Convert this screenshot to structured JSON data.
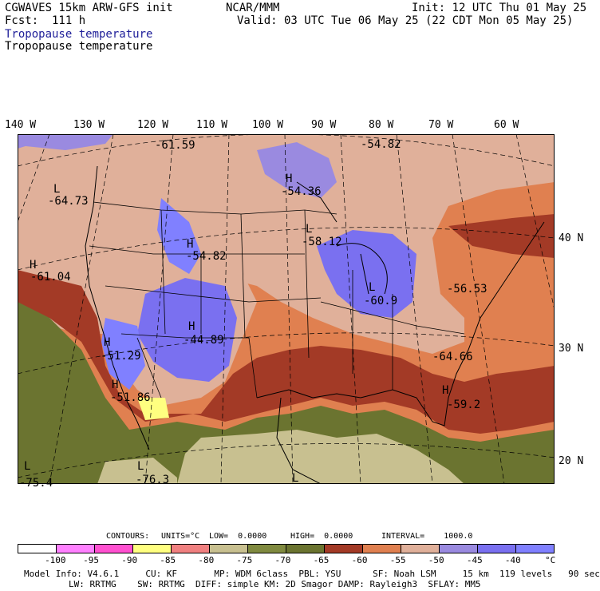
{
  "header": {
    "model": "CGWAVES 15km ARW-GFS init",
    "fcst": "Fcst:  111 h",
    "org": "NCAR/MMM",
    "init": "Init: 12 UTC Thu 01 May 25",
    "valid": "Valid: 03 UTC Tue 06 May 25 (22 CDT Mon 05 May 25)",
    "field_blue": "Tropopause temperature",
    "field_black": "Tropopause temperature"
  },
  "longitude_labels": [
    "140 W",
    "130 W",
    "120 W",
    "110 W",
    "100 W",
    "90 W",
    "80 W",
    "70 W",
    "60 W"
  ],
  "latitude_labels": [
    "40 N",
    "30 N",
    "20 N"
  ],
  "extrema": [
    {
      "letter": "L",
      "value": "-64.73"
    },
    {
      "letter": "",
      "value": "-61.59"
    },
    {
      "letter": "H",
      "value": "-61.04"
    },
    {
      "letter": "H",
      "value": "-54.36"
    },
    {
      "letter": "",
      "value": "-54.82"
    },
    {
      "letter": "H",
      "value": "-54.82"
    },
    {
      "letter": "L",
      "value": "-58.12"
    },
    {
      "letter": "L",
      "value": "-60.9"
    },
    {
      "letter": "H",
      "value": "-44.89"
    },
    {
      "letter": "H",
      "value": "-51.29"
    },
    {
      "letter": "H",
      "value": "-51.86"
    },
    {
      "letter": "",
      "value": "-56.53"
    },
    {
      "letter": "",
      "value": "-64.66"
    },
    {
      "letter": "H",
      "value": "-59.2"
    },
    {
      "letter": "L",
      "value": "-76.3"
    },
    {
      "letter": "L",
      "value": "-75.4"
    },
    {
      "letter": "L",
      "value": ""
    }
  ],
  "contours": {
    "label": "CONTOURS:",
    "units": "UNITS=°C",
    "low": "LOW=  0.0000",
    "high": "HIGH=  0.0000",
    "interval": "INTERVAL=    1000.0"
  },
  "colorbar": {
    "labels": [
      "-100",
      "-95",
      "-90",
      "-85",
      "-80",
      "-75",
      "-70",
      "-65",
      "-60",
      "-55",
      "-50",
      "-45",
      "-40",
      "°C"
    ],
    "colors": [
      "#ffffff",
      "#ff80ff",
      "#ff50d0",
      "#ffff80",
      "#f08080",
      "#c8c090",
      "#808a40",
      "#6b7430",
      "#a33a26",
      "#e08050",
      "#e0b09a",
      "#9a8ae0",
      "#7a70f0",
      "#8080ff"
    ]
  },
  "footer": {
    "line1": "Model Info: V4.6.1     CU: KF       MP: WDM 6class  PBL: YSU      SF: Noah LSM     15 km  119 levels   90 sec",
    "line2": "LW: RRTMG    SW: RRTMG  DIFF: simple KM: 2D Smagor DAMP: Rayleigh3  SFLAY: MM5"
  }
}
